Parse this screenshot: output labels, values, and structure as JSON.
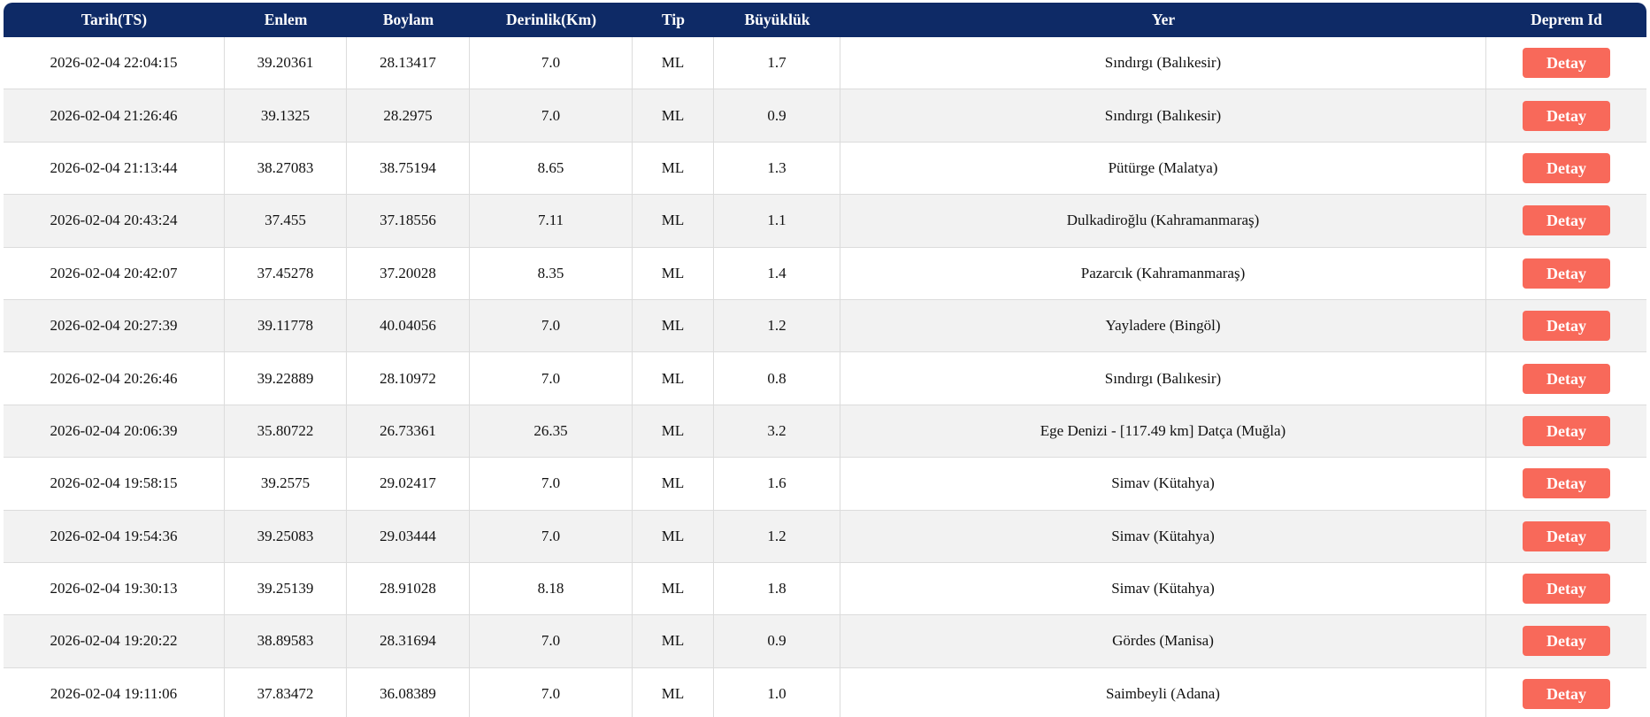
{
  "colors": {
    "header_bg": "#0e2a66",
    "header_text": "#ffffff",
    "row_bg": "#ffffff",
    "row_alt_bg": "#f2f2f2",
    "border": "#dcdcdc",
    "button_bg": "#f8695a",
    "button_text": "#ffffff"
  },
  "table": {
    "columns": [
      {
        "label": "Tarih(TS)"
      },
      {
        "label": "Enlem"
      },
      {
        "label": "Boylam"
      },
      {
        "label": "Derinlik(Km)"
      },
      {
        "label": "Tip"
      },
      {
        "label": "Büyüklük"
      },
      {
        "label": "Yer"
      },
      {
        "label": "Deprem Id"
      }
    ],
    "detail_button_label": "Detay",
    "rows": [
      [
        "2026-02-04 22:04:15",
        "39.20361",
        "28.13417",
        "7.0",
        "ML",
        "1.7",
        "Sındırgı (Balıkesir)"
      ],
      [
        "2026-02-04 21:26:46",
        "39.1325",
        "28.2975",
        "7.0",
        "ML",
        "0.9",
        "Sındırgı (Balıkesir)"
      ],
      [
        "2026-02-04 21:13:44",
        "38.27083",
        "38.75194",
        "8.65",
        "ML",
        "1.3",
        "Pütürge (Malatya)"
      ],
      [
        "2026-02-04 20:43:24",
        "37.455",
        "37.18556",
        "7.11",
        "ML",
        "1.1",
        "Dulkadiroğlu (Kahramanmaraş)"
      ],
      [
        "2026-02-04 20:42:07",
        "37.45278",
        "37.20028",
        "8.35",
        "ML",
        "1.4",
        "Pazarcık (Kahramanmaraş)"
      ],
      [
        "2026-02-04 20:27:39",
        "39.11778",
        "40.04056",
        "7.0",
        "ML",
        "1.2",
        "Yayladere (Bingöl)"
      ],
      [
        "2026-02-04 20:26:46",
        "39.22889",
        "28.10972",
        "7.0",
        "ML",
        "0.8",
        "Sındırgı (Balıkesir)"
      ],
      [
        "2026-02-04 20:06:39",
        "35.80722",
        "26.73361",
        "26.35",
        "ML",
        "3.2",
        "Ege Denizi - [117.49 km] Datça (Muğla)"
      ],
      [
        "2026-02-04 19:58:15",
        "39.2575",
        "29.02417",
        "7.0",
        "ML",
        "1.6",
        "Simav (Kütahya)"
      ],
      [
        "2026-02-04 19:54:36",
        "39.25083",
        "29.03444",
        "7.0",
        "ML",
        "1.2",
        "Simav (Kütahya)"
      ],
      [
        "2026-02-04 19:30:13",
        "39.25139",
        "28.91028",
        "8.18",
        "ML",
        "1.8",
        "Simav (Kütahya)"
      ],
      [
        "2026-02-04 19:20:22",
        "38.89583",
        "28.31694",
        "7.0",
        "ML",
        "0.9",
        "Gördes (Manisa)"
      ],
      [
        "2026-02-04 19:11:06",
        "37.83472",
        "36.08389",
        "7.0",
        "ML",
        "1.0",
        "Saimbeyli (Adana)"
      ]
    ]
  }
}
